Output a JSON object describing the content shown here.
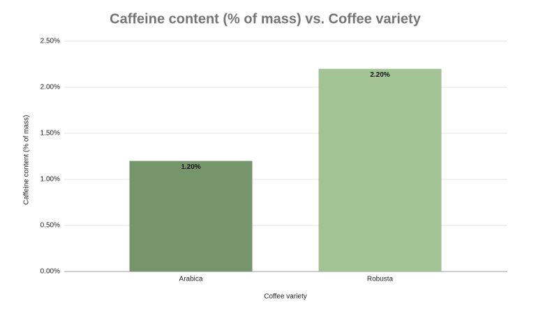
{
  "chart_data": {
    "type": "bar",
    "title": "Caffeine content (% of mass) vs. Coffee variety",
    "x_label": "Coffee variety",
    "y_label": "Caffeine content (% of mass)",
    "categories": [
      "Arabica",
      "Robusta"
    ],
    "values": [
      1.2,
      2.2
    ],
    "value_labels": [
      "1.20%",
      "2.20%"
    ],
    "colors": [
      "#76956a",
      "#a2c393"
    ],
    "ylim": [
      0,
      2.5
    ],
    "yticks": [
      {
        "value": 0,
        "label": "0.00%"
      },
      {
        "value": 0.5,
        "label": "0.50%"
      },
      {
        "value": 1,
        "label": "1.00%"
      },
      {
        "value": 1.5,
        "label": "1.50%"
      },
      {
        "value": 2,
        "label": "2.00%"
      },
      {
        "value": 2.5,
        "label": "2.50%"
      }
    ],
    "grid": true
  }
}
